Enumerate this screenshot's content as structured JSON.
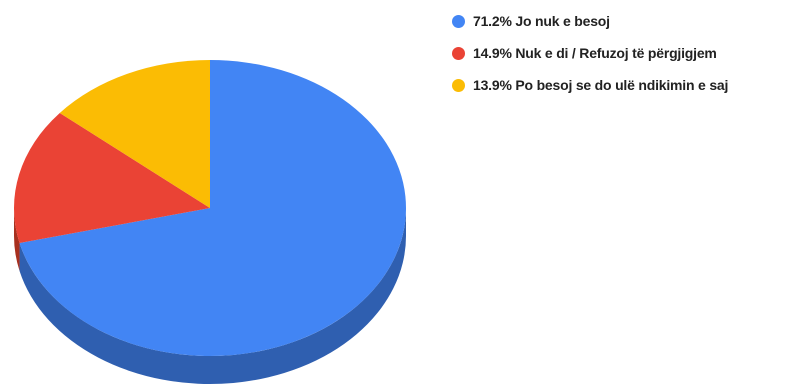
{
  "chart_data": {
    "type": "pie",
    "style": "3d",
    "legend_position": "right",
    "slices": [
      {
        "label": "Jo nuk e besoj",
        "value": 71.2,
        "display": "71.2% Jo nuk e besoj",
        "color": "#4285F4",
        "side_color": "#2F5FB0"
      },
      {
        "label": "Nuk e di / Refuzoj të përgjigjem",
        "value": 14.9,
        "display": "14.9% Nuk e di / Refuzoj të përgjigjem",
        "color": "#EA4335",
        "side_color": "#A8301F"
      },
      {
        "label": "Po besoj se do ulë ndikimin e saj",
        "value": 13.9,
        "display": "13.9% Po besoj se do ulë ndikimin e saj",
        "color": "#FBBC04",
        "side_color": "#B88A03"
      }
    ]
  }
}
